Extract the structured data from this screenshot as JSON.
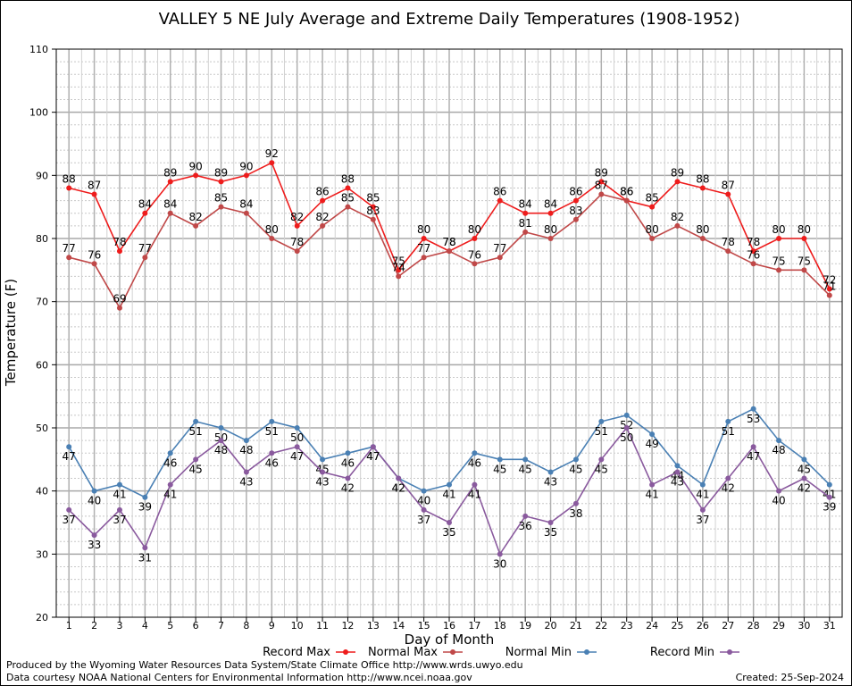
{
  "chart_data": {
    "type": "line",
    "title": "VALLEY 5 NE July Average and Extreme Daily Temperatures (1908-1952)",
    "xlabel": "Day of Month",
    "ylabel": "Temperature (F)",
    "ylim": [
      20,
      110
    ],
    "yticks": [
      "20",
      "30",
      "40",
      "50",
      "60",
      "70",
      "80",
      "90",
      "100",
      "110"
    ],
    "x": [
      1,
      2,
      3,
      4,
      5,
      6,
      7,
      8,
      9,
      10,
      11,
      12,
      13,
      14,
      15,
      16,
      17,
      18,
      19,
      20,
      21,
      22,
      23,
      24,
      25,
      26,
      27,
      28,
      29,
      30,
      31
    ],
    "grid": true,
    "legend_position": "bottom",
    "series": [
      {
        "name": "Record Max",
        "color": "#ee1c1c",
        "values": [
          88,
          87,
          78,
          84,
          89,
          90,
          89,
          90,
          92,
          82,
          86,
          88,
          85,
          75,
          80,
          78,
          80,
          86,
          84,
          84,
          86,
          89,
          86,
          85,
          89,
          88,
          87,
          78,
          80,
          80,
          72
        ]
      },
      {
        "name": "Normal Max",
        "color": "#c04848",
        "values": [
          77,
          76,
          69,
          77,
          84,
          82,
          85,
          84,
          80,
          78,
          82,
          85,
          83,
          74,
          77,
          78,
          76,
          77,
          81,
          80,
          83,
          87,
          86,
          80,
          82,
          80,
          78,
          76,
          75,
          75,
          71
        ]
      },
      {
        "name": "Normal Min",
        "color": "#4a80b4",
        "values": [
          47,
          40,
          41,
          39,
          46,
          51,
          50,
          48,
          51,
          50,
          45,
          46,
          47,
          42,
          40,
          41,
          46,
          45,
          45,
          43,
          45,
          51,
          52,
          49,
          44,
          41,
          51,
          53,
          48,
          45,
          41
        ]
      },
      {
        "name": "Record Min",
        "color": "#8a5a9e",
        "values": [
          37,
          33,
          37,
          31,
          41,
          45,
          48,
          43,
          46,
          47,
          43,
          42,
          47,
          42,
          37,
          35,
          41,
          30,
          36,
          35,
          38,
          45,
          50,
          41,
          43,
          37,
          42,
          47,
          40,
          42,
          39
        ]
      }
    ]
  },
  "footer": {
    "produced_by": "Produced by the Wyoming Water Resources Data System/State Climate Office http://www.wrds.uwyo.edu",
    "courtesy": "Data courtesy NOAA National Centers for Environmental Information http://www.ncei.noaa.gov",
    "created": "Created: 25-Sep-2024"
  }
}
